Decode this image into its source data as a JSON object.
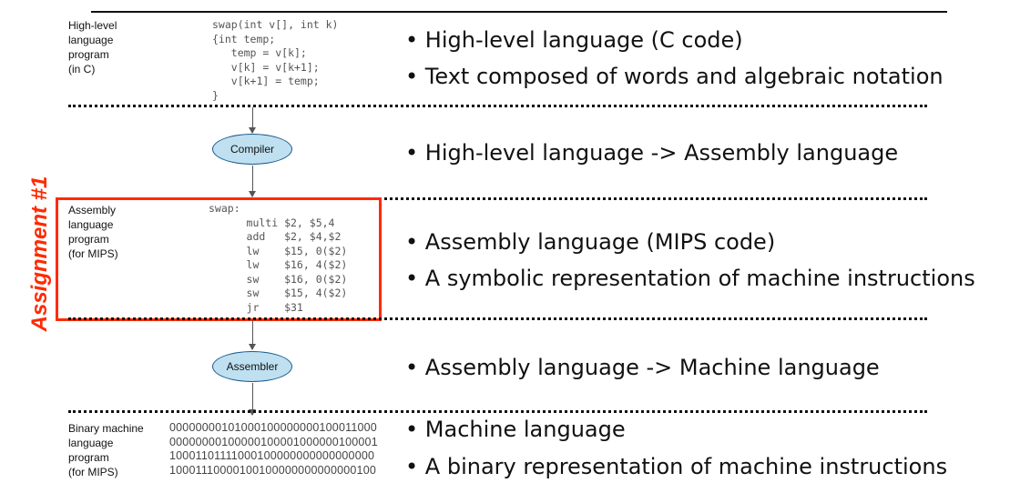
{
  "high_level": {
    "label": [
      "High-level",
      "language",
      "program",
      "(in C)"
    ],
    "code": "swap(int v[], int k)\n{int temp;\n   temp = v[k];\n   v[k] = v[k+1];\n   v[k+1] = temp;\n}",
    "bullets": [
      "• High-level language (C code)",
      "• Text composed of words and algebraic notation"
    ]
  },
  "compiler": {
    "label": "Compiler",
    "bullet": "• High-level language -> Assembly language"
  },
  "assembly": {
    "label": [
      "Assembly",
      "language",
      "program",
      "(for MIPS)"
    ],
    "code": "swap:\n      multi $2, $5,4\n      add   $2, $4,$2\n      lw    $15, 0($2)\n      lw    $16, 4($2)\n      sw    $16, 0($2)\n      sw    $15, 4($2)\n      jr    $31",
    "bullets": [
      "• Assembly language (MIPS code)",
      "• A symbolic representation of machine instructions"
    ]
  },
  "assignment": "Assignment #1",
  "assembler": {
    "label": "Assembler",
    "bullet": "• Assembly language -> Machine language"
  },
  "binary": {
    "label": [
      "Binary machine",
      "language",
      "program",
      "(for MIPS)"
    ],
    "code": "00000000101000100000000100011000\n00000000100000100001000000100001\n10001101111000100000000000000000\n10001110000100100000000000000100",
    "bullets": [
      "• Machine language",
      "• A binary representation of machine instructions"
    ]
  },
  "colors": {
    "highlight": "#ff2a00",
    "ellipse": "#bfe0f0"
  }
}
